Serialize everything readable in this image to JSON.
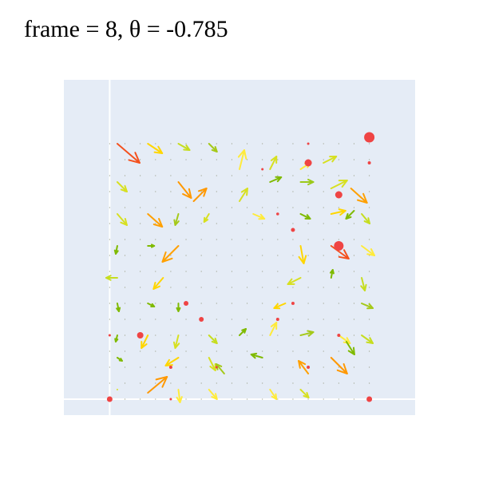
{
  "title": "frame = 8, θ = -0.785",
  "chart_data": {
    "type": "quiver",
    "title": "frame = 8, θ = -0.785",
    "xlim": [
      -1.5,
      10.0
    ],
    "ylim": [
      -0.5,
      10.0
    ],
    "grid": true,
    "axes_lines": {
      "x": 0,
      "y": 0
    },
    "colors": {
      "background": "#E5ECF6",
      "grid": "#FFFFFF",
      "dot": "#EF4444",
      "low": "#7FBA00",
      "mid": "#D7E021",
      "high": "#FFEB3B",
      "strong": "#FF9800",
      "strongest": "#F4511E"
    },
    "vectors": [
      {
        "x": 0.25,
        "y": 8.0,
        "u": 1.4,
        "v": -1.2,
        "color": "#F4511E"
      },
      {
        "x": 1.25,
        "y": 8.0,
        "u": 0.9,
        "v": -0.6,
        "color": "#FFD600"
      },
      {
        "x": 2.25,
        "y": 8.0,
        "u": 0.7,
        "v": -0.4,
        "color": "#C6DD1F"
      },
      {
        "x": 3.25,
        "y": 8.0,
        "u": 0.5,
        "v": -0.5,
        "color": "#A5C91A"
      },
      {
        "x": 4.25,
        "y": 7.2,
        "u": 0.3,
        "v": 1.2,
        "color": "#FFEB3B"
      },
      {
        "x": 5.25,
        "y": 7.2,
        "u": 0.4,
        "v": 0.8,
        "color": "#D7E021"
      },
      {
        "x": 6.25,
        "y": 7.2,
        "u": 0.6,
        "v": 0.4,
        "color": "#FFEB3B"
      },
      {
        "x": 7.0,
        "y": 7.4,
        "u": 0.8,
        "v": 0.4,
        "color": "#D7E021"
      },
      {
        "x": 7.9,
        "y": 6.6,
        "u": 1.0,
        "v": -0.9,
        "color": "#FFA000"
      },
      {
        "x": 0.25,
        "y": 6.8,
        "u": 0.6,
        "v": -0.6,
        "color": "#D7E021"
      },
      {
        "x": 2.25,
        "y": 6.8,
        "u": 0.8,
        "v": -1.0,
        "color": "#FF9800"
      },
      {
        "x": 2.75,
        "y": 6.2,
        "u": 0.8,
        "v": 0.8,
        "color": "#FF9800"
      },
      {
        "x": 4.25,
        "y": 6.2,
        "u": 0.5,
        "v": 0.8,
        "color": "#D7E021"
      },
      {
        "x": 5.25,
        "y": 6.8,
        "u": 0.7,
        "v": 0.3,
        "color": "#7FBA00"
      },
      {
        "x": 6.25,
        "y": 6.8,
        "u": 0.8,
        "v": 0.0,
        "color": "#9CC91A"
      },
      {
        "x": 7.25,
        "y": 6.6,
        "u": 1.0,
        "v": 0.5,
        "color": "#D7E021"
      },
      {
        "x": 8.0,
        "y": 5.9,
        "u": -0.5,
        "v": -0.5,
        "color": "#7FBA00"
      },
      {
        "x": 0.25,
        "y": 5.8,
        "u": 0.6,
        "v": -0.7,
        "color": "#D7E021"
      },
      {
        "x": 1.25,
        "y": 5.8,
        "u": 0.9,
        "v": -0.8,
        "color": "#FFA000"
      },
      {
        "x": 2.25,
        "y": 5.8,
        "u": -0.2,
        "v": -0.7,
        "color": "#A5C91A"
      },
      {
        "x": 3.25,
        "y": 5.8,
        "u": -0.3,
        "v": -0.5,
        "color": "#D7E021"
      },
      {
        "x": 4.7,
        "y": 5.8,
        "u": 0.7,
        "v": -0.3,
        "color": "#FFEB3B"
      },
      {
        "x": 6.25,
        "y": 5.8,
        "u": 0.6,
        "v": -0.3,
        "color": "#7FBA00"
      },
      {
        "x": 7.25,
        "y": 5.8,
        "u": 0.9,
        "v": 0.2,
        "color": "#FFD600"
      },
      {
        "x": 8.25,
        "y": 5.8,
        "u": 0.5,
        "v": -0.6,
        "color": "#C6DD1F"
      },
      {
        "x": 0.25,
        "y": 4.8,
        "u": -0.1,
        "v": -0.5,
        "color": "#7FBA00"
      },
      {
        "x": 1.25,
        "y": 4.8,
        "u": 0.4,
        "v": 0.0,
        "color": "#7FBA00"
      },
      {
        "x": 2.25,
        "y": 4.8,
        "u": -1.0,
        "v": -1.0,
        "color": "#FFA000"
      },
      {
        "x": 6.25,
        "y": 4.8,
        "u": 0.2,
        "v": -1.1,
        "color": "#FFD600"
      },
      {
        "x": 7.25,
        "y": 4.8,
        "u": 1.1,
        "v": -0.8,
        "color": "#F4511E"
      },
      {
        "x": 8.25,
        "y": 4.8,
        "u": 0.8,
        "v": -0.6,
        "color": "#FFEB3B"
      },
      {
        "x": 0.25,
        "y": 3.8,
        "u": -0.7,
        "v": 0.0,
        "color": "#C6DD1F"
      },
      {
        "x": 1.75,
        "y": 3.8,
        "u": -0.6,
        "v": -0.7,
        "color": "#FFD600"
      },
      {
        "x": 6.25,
        "y": 3.8,
        "u": -0.8,
        "v": -0.4,
        "color": "#D7E021"
      },
      {
        "x": 7.25,
        "y": 3.8,
        "u": 0.1,
        "v": 0.5,
        "color": "#7FBA00"
      },
      {
        "x": 8.25,
        "y": 3.8,
        "u": 0.2,
        "v": -0.8,
        "color": "#C6DD1F"
      },
      {
        "x": 0.25,
        "y": 3.0,
        "u": 0.1,
        "v": -0.5,
        "color": "#7FBA00"
      },
      {
        "x": 1.25,
        "y": 3.0,
        "u": 0.4,
        "v": -0.2,
        "color": "#7FBA00"
      },
      {
        "x": 2.25,
        "y": 3.0,
        "u": 0.0,
        "v": -0.5,
        "color": "#7FBA00"
      },
      {
        "x": 5.75,
        "y": 3.0,
        "u": -0.7,
        "v": -0.3,
        "color": "#FFD600"
      },
      {
        "x": 8.25,
        "y": 3.0,
        "u": 0.7,
        "v": -0.3,
        "color": "#A5C91A"
      },
      {
        "x": 0.25,
        "y": 2.0,
        "u": -0.1,
        "v": -0.4,
        "color": "#7FBA00"
      },
      {
        "x": 1.25,
        "y": 2.0,
        "u": -0.4,
        "v": -0.8,
        "color": "#FFD600"
      },
      {
        "x": 2.25,
        "y": 2.0,
        "u": -0.2,
        "v": -0.8,
        "color": "#D7E021"
      },
      {
        "x": 3.25,
        "y": 2.0,
        "u": 0.5,
        "v": -0.5,
        "color": "#C6DD1F"
      },
      {
        "x": 4.25,
        "y": 2.0,
        "u": 0.4,
        "v": 0.4,
        "color": "#7FBA00"
      },
      {
        "x": 5.25,
        "y": 2.0,
        "u": 0.4,
        "v": 0.8,
        "color": "#FFEB3B"
      },
      {
        "x": 6.25,
        "y": 2.0,
        "u": 0.8,
        "v": 0.2,
        "color": "#A5C91A"
      },
      {
        "x": 7.5,
        "y": 2.0,
        "u": 0.7,
        "v": -0.5,
        "color": "#FFEB3B"
      },
      {
        "x": 8.25,
        "y": 2.0,
        "u": 0.7,
        "v": -0.5,
        "color": "#C6DD1F"
      },
      {
        "x": 0.25,
        "y": 1.3,
        "u": 0.3,
        "v": -0.2,
        "color": "#7FBA00"
      },
      {
        "x": 1.25,
        "y": 0.2,
        "u": 1.2,
        "v": 1.0,
        "color": "#FF9800"
      },
      {
        "x": 2.25,
        "y": 1.3,
        "u": -0.8,
        "v": -0.5,
        "color": "#FFD600"
      },
      {
        "x": 3.25,
        "y": 1.3,
        "u": 0.4,
        "v": -0.8,
        "color": "#D7E021"
      },
      {
        "x": 3.75,
        "y": 0.8,
        "u": -0.5,
        "v": 0.6,
        "color": "#A5C91A"
      },
      {
        "x": 5.0,
        "y": 1.3,
        "u": -0.7,
        "v": 0.2,
        "color": "#7FBA00"
      },
      {
        "x": 6.5,
        "y": 0.8,
        "u": -0.6,
        "v": 0.8,
        "color": "#FFA000"
      },
      {
        "x": 7.25,
        "y": 1.3,
        "u": 1.0,
        "v": -1.0,
        "color": "#FF9800"
      },
      {
        "x": 7.75,
        "y": 1.8,
        "u": 0.5,
        "v": -0.8,
        "color": "#7FBA00"
      },
      {
        "x": 2.25,
        "y": 0.3,
        "u": 0.1,
        "v": -0.8,
        "color": "#FFEB3B"
      },
      {
        "x": 3.25,
        "y": 0.3,
        "u": 0.5,
        "v": -0.6,
        "color": "#FFEB3B"
      },
      {
        "x": 5.25,
        "y": 0.3,
        "u": 0.4,
        "v": -0.6,
        "color": "#FFEB3B"
      },
      {
        "x": 6.25,
        "y": 0.3,
        "u": 0.5,
        "v": -0.5,
        "color": "#D7E021"
      },
      {
        "x": 0.25,
        "y": 0.3,
        "u": 0.0,
        "v": 0.0,
        "color": "#D7E021"
      }
    ],
    "markers": [
      {
        "x": 8.5,
        "y": 8.2,
        "size": 6.5
      },
      {
        "x": 6.5,
        "y": 7.4,
        "size": 4.5
      },
      {
        "x": 7.5,
        "y": 6.4,
        "size": 4.5
      },
      {
        "x": 7.5,
        "y": 4.8,
        "size": 6.0
      },
      {
        "x": 6.0,
        "y": 5.3,
        "size": 2.5
      },
      {
        "x": 5.5,
        "y": 5.8,
        "size": 1.8
      },
      {
        "x": 8.5,
        "y": 7.4,
        "size": 2.0
      },
      {
        "x": 2.5,
        "y": 3.0,
        "size": 3.0
      },
      {
        "x": 3.0,
        "y": 2.5,
        "size": 3.0
      },
      {
        "x": 1.0,
        "y": 2.0,
        "size": 4.0
      },
      {
        "x": 6.0,
        "y": 3.0,
        "size": 2.0
      },
      {
        "x": 5.5,
        "y": 2.5,
        "size": 2.0
      },
      {
        "x": 0.0,
        "y": 0.0,
        "size": 3.5
      },
      {
        "x": 8.5,
        "y": 0.0,
        "size": 3.5
      },
      {
        "x": 2.0,
        "y": 1.0,
        "size": 2.0
      },
      {
        "x": 3.5,
        "y": 1.0,
        "size": 1.5
      },
      {
        "x": 6.5,
        "y": 1.0,
        "size": 2.0
      },
      {
        "x": 7.5,
        "y": 2.0,
        "size": 2.0
      },
      {
        "x": 5.0,
        "y": 7.2,
        "size": 1.5
      },
      {
        "x": 6.5,
        "y": 8.0,
        "size": 1.5
      },
      {
        "x": 2.0,
        "y": 0.0,
        "size": 1.5
      },
      {
        "x": 0.0,
        "y": 2.0,
        "size": 1.5
      }
    ]
  }
}
